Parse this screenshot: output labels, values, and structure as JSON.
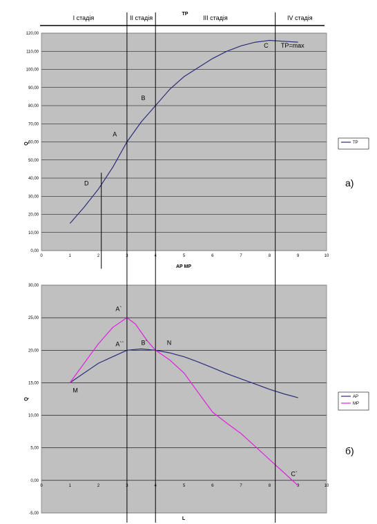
{
  "stages": [
    "I стадія",
    "II стадія",
    "III стадія",
    "IV стадія"
  ],
  "stage_boundaries_x": [
    3,
    4,
    8.2
  ],
  "chart_data": [
    {
      "type": "line",
      "title": "TP",
      "xlabel": "AP MP",
      "ylabel": "Q",
      "xlim": [
        0,
        10
      ],
      "ylim": [
        0,
        120
      ],
      "x_ticks": [
        "0",
        "1",
        "2",
        "3",
        "4",
        "5",
        "6",
        "7",
        "8",
        "9",
        "10"
      ],
      "y_ticks": [
        "0,00",
        "10,00",
        "20,00",
        "30,00",
        "40,00",
        "50,00",
        "60,00",
        "70,00",
        "80,00",
        "90,00",
        "100,00",
        "110,00",
        "120,00"
      ],
      "grid": true,
      "legend": "right",
      "panel_label": "а)",
      "series": [
        {
          "name": "TP",
          "color": "#2b2b7a",
          "points": [
            [
              1,
              15
            ],
            [
              1.5,
              24
            ],
            [
              2,
              34
            ],
            [
              2.5,
              46
            ],
            [
              3,
              60
            ],
            [
              3.5,
              71
            ],
            [
              4,
              80
            ],
            [
              4.5,
              89
            ],
            [
              5,
              96
            ],
            [
              5.5,
              101
            ],
            [
              6,
              106
            ],
            [
              6.5,
              110
            ],
            [
              7,
              113
            ],
            [
              7.5,
              115
            ],
            [
              8,
              116
            ],
            [
              8.5,
              115.5
            ],
            [
              9,
              115
            ]
          ]
        }
      ],
      "annotations": [
        {
          "text": "A",
          "x": 2.5,
          "y": 63
        },
        {
          "text": "B",
          "x": 3.5,
          "y": 83
        },
        {
          "text": "C",
          "x": 7.8,
          "y": 112
        },
        {
          "text": "TP=max",
          "x": 8.4,
          "y": 112
        },
        {
          "text": "D",
          "x": 1.5,
          "y": 36
        }
      ],
      "marker_line": {
        "x": 2.1,
        "y_from": 43,
        "y_to": -10
      }
    },
    {
      "type": "line",
      "xlabel": "L",
      "ylabel": "Q",
      "xlim": [
        0,
        10
      ],
      "ylim": [
        -5,
        30
      ],
      "x_ticks": [
        "0",
        "1",
        "2",
        "3",
        "4",
        "5",
        "6",
        "7",
        "8",
        "9",
        "10"
      ],
      "y_ticks": [
        "-5,00",
        "0,00",
        "5,00",
        "10,00",
        "15,00",
        "20,00",
        "25,00",
        "30,00"
      ],
      "grid": true,
      "legend": "right",
      "panel_label": "б)",
      "series": [
        {
          "name": "AP",
          "color": "#2b2b7a",
          "points": [
            [
              1,
              15
            ],
            [
              1.5,
              16.5
            ],
            [
              2,
              18
            ],
            [
              2.5,
              19
            ],
            [
              3,
              20
            ],
            [
              3.5,
              20.2
            ],
            [
              4,
              20
            ],
            [
              4.5,
              19.6
            ],
            [
              5,
              19
            ],
            [
              5.5,
              18.2
            ],
            [
              6,
              17.3
            ],
            [
              6.5,
              16.4
            ],
            [
              7,
              15.6
            ],
            [
              7.5,
              14.8
            ],
            [
              8,
              14
            ],
            [
              8.5,
              13.3
            ],
            [
              9,
              12.7
            ]
          ]
        },
        {
          "name": "MP",
          "color": "#e020e0",
          "points": [
            [
              1,
              15
            ],
            [
              1.5,
              18
            ],
            [
              2,
              21
            ],
            [
              2.5,
              23.5
            ],
            [
              3,
              25
            ],
            [
              3.3,
              24
            ],
            [
              3.7,
              21.5
            ],
            [
              4,
              20
            ],
            [
              4.5,
              18.5
            ],
            [
              5,
              16.5
            ],
            [
              5.5,
              13.5
            ],
            [
              6,
              10.5
            ],
            [
              6.5,
              8.8
            ],
            [
              7,
              7.2
            ],
            [
              7.5,
              5.2
            ],
            [
              8,
              3.2
            ],
            [
              8.5,
              1.2
            ],
            [
              9,
              -0.8
            ]
          ]
        }
      ],
      "annotations": [
        {
          "text": "A`",
          "x": 2.6,
          "y": 26
        },
        {
          "text": "A``",
          "x": 2.6,
          "y": 20.6
        },
        {
          "text": "B`",
          "x": 3.5,
          "y": 20.8
        },
        {
          "text": "N",
          "x": 4.4,
          "y": 20.8
        },
        {
          "text": "M",
          "x": 1.1,
          "y": 13.5
        },
        {
          "text": "C`",
          "x": 8.75,
          "y": 0.7
        }
      ]
    }
  ]
}
